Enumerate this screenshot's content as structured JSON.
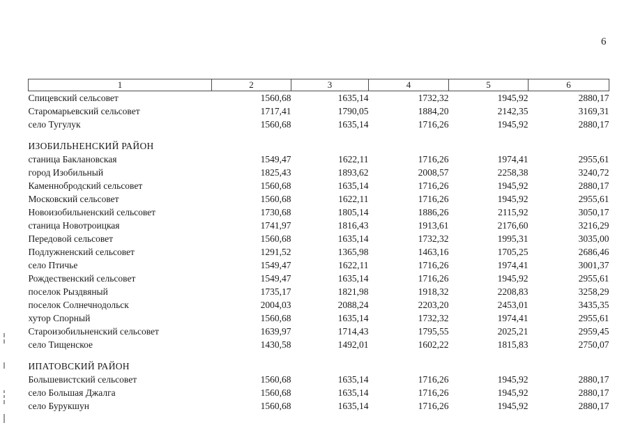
{
  "page_number": "6",
  "table": {
    "columns": [
      "1",
      "2",
      "3",
      "4",
      "5",
      "6"
    ],
    "sections": [
      {
        "title": "",
        "rows": [
          {
            "name": "Спицевский сельсовет",
            "values": [
              "1560,68",
              "1635,14",
              "1732,32",
              "1945,92",
              "2880,17"
            ]
          },
          {
            "name": "Старомарьевский сельсовет",
            "values": [
              "1717,41",
              "1790,05",
              "1884,20",
              "2142,35",
              "3169,31"
            ]
          },
          {
            "name": "село Тугулук",
            "values": [
              "1560,68",
              "1635,14",
              "1716,26",
              "1945,92",
              "2880,17"
            ]
          }
        ]
      },
      {
        "title": "ИЗОБИЛЬНЕНСКИЙ РАЙОН",
        "rows": [
          {
            "name": "станица Баклановская",
            "values": [
              "1549,47",
              "1622,11",
              "1716,26",
              "1974,41",
              "2955,61"
            ]
          },
          {
            "name": "город Изобильный",
            "values": [
              "1825,43",
              "1893,62",
              "2008,57",
              "2258,38",
              "3240,72"
            ]
          },
          {
            "name": "Каменнобродский сельсовет",
            "values": [
              "1560,68",
              "1635,14",
              "1716,26",
              "1945,92",
              "2880,17"
            ]
          },
          {
            "name": "Московский сельсовет",
            "values": [
              "1560,68",
              "1622,11",
              "1716,26",
              "1945,92",
              "2955,61"
            ]
          },
          {
            "name": "Новоизобильненский сельсовет",
            "values": [
              "1730,68",
              "1805,14",
              "1886,26",
              "2115,92",
              "3050,17"
            ]
          },
          {
            "name": "станица Новотроицкая",
            "values": [
              "1741,97",
              "1816,43",
              "1913,61",
              "2176,60",
              "3216,29"
            ]
          },
          {
            "name": "Передовой сельсовет",
            "values": [
              "1560,68",
              "1635,14",
              "1732,32",
              "1995,31",
              "3035,00"
            ]
          },
          {
            "name": "Подлужненский сельсовет",
            "values": [
              "1291,52",
              "1365,98",
              "1463,16",
              "1705,25",
              "2686,46"
            ]
          },
          {
            "name": "село Птичье",
            "values": [
              "1549,47",
              "1622,11",
              "1716,26",
              "1974,41",
              "3001,37"
            ]
          },
          {
            "name": "Рождественский сельсовет",
            "values": [
              "1549,47",
              "1635,14",
              "1716,26",
              "1945,92",
              "2955,61"
            ]
          },
          {
            "name": "поселок Рыздвяный",
            "values": [
              "1735,17",
              "1821,98",
              "1918,32",
              "2208,83",
              "3258,29"
            ]
          },
          {
            "name": "поселок Солнечнодольск",
            "values": [
              "2004,03",
              "2088,24",
              "2203,20",
              "2453,01",
              "3435,35"
            ]
          },
          {
            "name": "хутор Спорный",
            "values": [
              "1560,68",
              "1635,14",
              "1732,32",
              "1974,41",
              "2955,61"
            ]
          },
          {
            "name": "Староизобильненский сельсовет",
            "values": [
              "1639,97",
              "1714,43",
              "1795,55",
              "2025,21",
              "2959,45"
            ]
          },
          {
            "name": "село Тищенское",
            "values": [
              "1430,58",
              "1492,01",
              "1602,22",
              "1815,83",
              "2750,07"
            ]
          }
        ]
      },
      {
        "title": "ИПАТОВСКИЙ РАЙОН",
        "rows": [
          {
            "name": "Большевистский сельсовет",
            "values": [
              "1560,68",
              "1635,14",
              "1716,26",
              "1945,92",
              "2880,17"
            ]
          },
          {
            "name": "село Большая Джалга",
            "values": [
              "1560,68",
              "1635,14",
              "1716,26",
              "1945,92",
              "2880,17"
            ]
          },
          {
            "name": "село Бурукшун",
            "values": [
              "1560,68",
              "1635,14",
              "1716,26",
              "1945,92",
              "2880,17"
            ]
          }
        ]
      }
    ]
  }
}
